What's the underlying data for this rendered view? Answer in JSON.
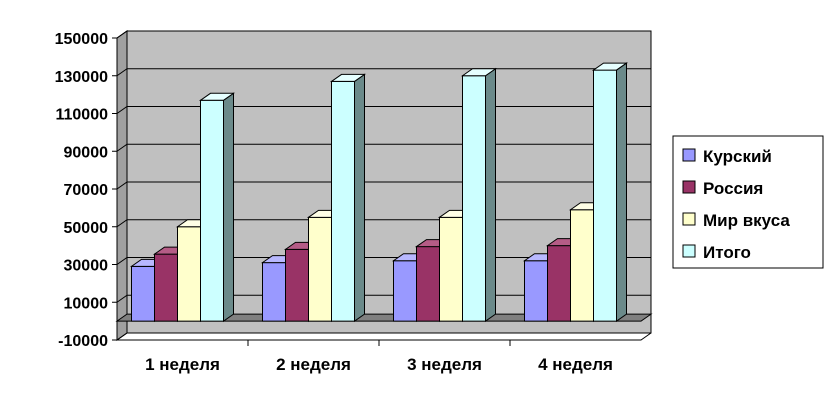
{
  "chart_data": {
    "type": "bar",
    "title": "",
    "xlabel": "",
    "ylabel": "",
    "categories": [
      "1 неделя",
      "2 неделя",
      "3 неделя",
      "4 неделя"
    ],
    "series": [
      {
        "name": "Курский",
        "values": [
          29000,
          31000,
          32000,
          32000
        ],
        "color": "#9999ff",
        "side": "#5c5cb8",
        "top": "#b8b8ff"
      },
      {
        "name": "Россия",
        "values": [
          35500,
          38000,
          39500,
          40000
        ],
        "color": "#993366",
        "side": "#5e1f3e",
        "top": "#b55c86"
      },
      {
        "name": "Мир вкуса",
        "values": [
          50000,
          55000,
          55000,
          59000
        ],
        "color": "#ffffcc",
        "side": "#b3b38a",
        "top": "#ffffe6"
      },
      {
        "name": "Итого",
        "values": [
          117000,
          127000,
          130000,
          133000
        ],
        "color": "#ccffff",
        "side": "#6b8a8a",
        "top": "#e6ffff"
      }
    ],
    "ylim": [
      -10000,
      150000
    ],
    "yticks": [
      150000,
      130000,
      110000,
      90000,
      70000,
      50000,
      30000,
      10000,
      -10000
    ],
    "grid": true,
    "legend_position": "right",
    "plot_colors": {
      "back_wall": "#c0c0c0",
      "floor": "#808080",
      "side_wall": "#a0a0a0"
    }
  }
}
